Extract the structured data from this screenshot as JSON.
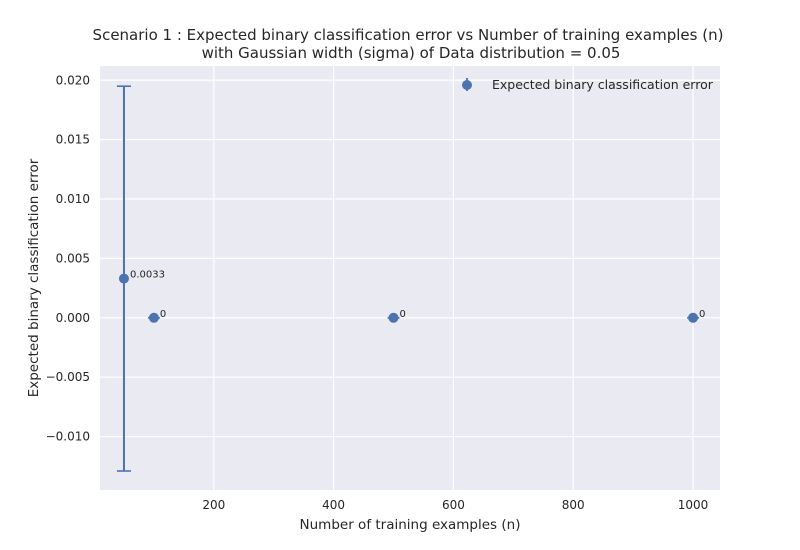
{
  "chart_data": {
    "type": "scatter",
    "title": "Scenario 1 : Expected binary classification error vs Number of training examples (n)",
    "subtitle": "with Gaussian width (sigma) of Data distribution = 0.05",
    "xlabel": "Number of training examples (n)",
    "ylabel": "Expected binary classification error",
    "xlim": [
      10,
      1045
    ],
    "ylim": [
      -0.0145,
      0.0212
    ],
    "xticks": [
      200,
      400,
      600,
      800,
      1000
    ],
    "xtick_labels": [
      "200",
      "400",
      "600",
      "800",
      "1000"
    ],
    "yticks": [
      -0.01,
      -0.005,
      0.0,
      0.005,
      0.01,
      0.015,
      0.02
    ],
    "ytick_labels": [
      "−0.010",
      "−0.005",
      "0.000",
      "0.005",
      "0.010",
      "0.015",
      "0.020"
    ],
    "grid": true,
    "legend_position": "top-right",
    "color": "#4c72b0",
    "series": [
      {
        "name": "Expected binary classification error",
        "x": [
          50,
          100,
          500,
          1000
        ],
        "y": [
          0.0033,
          0,
          0,
          0
        ],
        "yerr": [
          0.0162,
          0,
          0,
          0
        ],
        "point_labels": [
          "0.0033",
          "0",
          "0",
          "0"
        ]
      }
    ]
  }
}
